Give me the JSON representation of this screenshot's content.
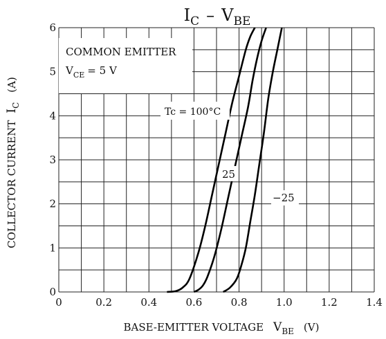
{
  "chart_data": {
    "type": "line",
    "title": {
      "main": "I",
      "sub1": "C",
      "dash": "–",
      "main2": "V",
      "sub2": "BE"
    },
    "xlabel": {
      "main": "BASE-EMITTER VOLTAGE",
      "sym": "V",
      "sub": "BE",
      "unit": "(V)"
    },
    "ylabel": {
      "main": "COLLECTOR CURRENT",
      "sym": "I",
      "sub": "C",
      "unit": "(A)"
    },
    "xlim": [
      0,
      1.4
    ],
    "ylim": [
      0,
      6
    ],
    "x_ticks": [
      "0",
      "0.2",
      "0.4",
      "0.6",
      "0.8",
      "1.0",
      "1.2",
      "1.4"
    ],
    "y_ticks": [
      "0",
      "1",
      "2",
      "3",
      "4",
      "5",
      "6"
    ],
    "grid": true,
    "annotations": {
      "cond1": "COMMON EMITTER",
      "cond2_sym": "V",
      "cond2_sub": "CE",
      "cond2_rest": "= 5 V",
      "tc": "Tc = 100°C"
    },
    "series": [
      {
        "name": "Tc = 100°C",
        "x": [
          0.48,
          0.52,
          0.55,
          0.58,
          0.62,
          0.65,
          0.68,
          0.71,
          0.74,
          0.77,
          0.8,
          0.83,
          0.85,
          0.87
        ],
        "y": [
          0.0,
          0.02,
          0.1,
          0.3,
          0.9,
          1.5,
          2.2,
          2.9,
          3.6,
          4.3,
          4.9,
          5.5,
          5.8,
          6.0
        ]
      },
      {
        "name": "25",
        "x": [
          0.6,
          0.62,
          0.64,
          0.66,
          0.69,
          0.72,
          0.75,
          0.78,
          0.81,
          0.84,
          0.86,
          0.88,
          0.9,
          0.92
        ],
        "y": [
          0.0,
          0.05,
          0.15,
          0.35,
          0.8,
          1.4,
          2.1,
          2.8,
          3.5,
          4.2,
          4.8,
          5.3,
          5.7,
          6.0
        ]
      },
      {
        "name": "−25",
        "x": [
          0.73,
          0.76,
          0.79,
          0.81,
          0.83,
          0.85,
          0.87,
          0.89,
          0.91,
          0.93,
          0.95,
          0.97,
          0.99
        ],
        "y": [
          0.0,
          0.1,
          0.3,
          0.6,
          1.0,
          1.6,
          2.2,
          2.9,
          3.6,
          4.4,
          5.0,
          5.5,
          6.0
        ]
      }
    ]
  }
}
